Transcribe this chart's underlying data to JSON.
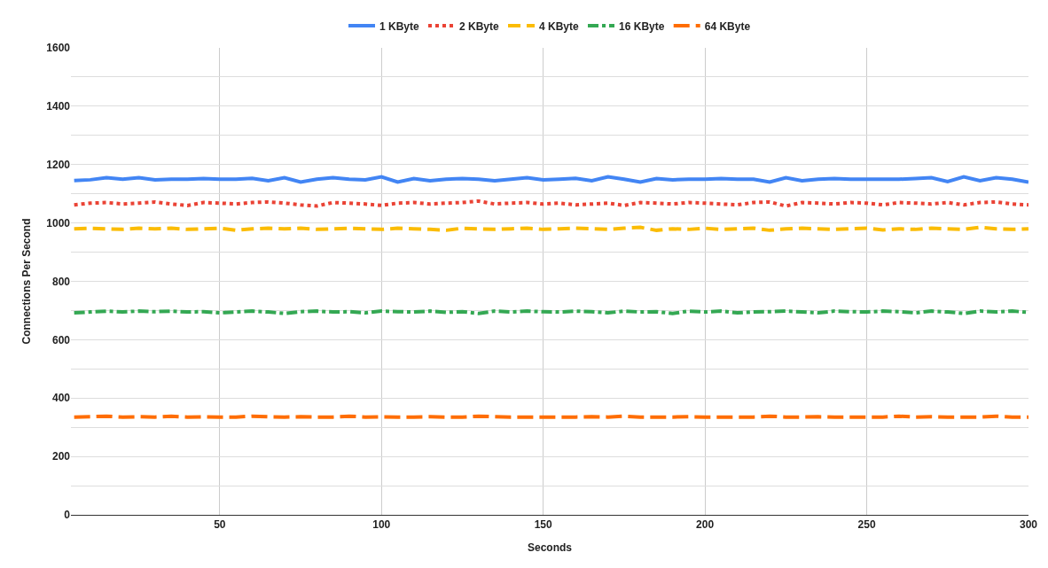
{
  "chart_data": {
    "type": "line",
    "xlabel": "Seconds",
    "ylabel": "Connections Per Second",
    "x": [
      5,
      10,
      15,
      20,
      25,
      30,
      35,
      40,
      45,
      50,
      55,
      60,
      65,
      70,
      75,
      80,
      85,
      90,
      95,
      100,
      105,
      110,
      115,
      120,
      125,
      130,
      135,
      140,
      145,
      150,
      155,
      160,
      165,
      170,
      175,
      180,
      185,
      190,
      195,
      200,
      205,
      210,
      215,
      220,
      225,
      230,
      235,
      240,
      245,
      250,
      255,
      260,
      265,
      270,
      275,
      280,
      285,
      290,
      295,
      300
    ],
    "series": [
      {
        "name": "1 KByte",
        "color": "#4285f4",
        "line_style": "solid",
        "values": [
          1145,
          1148,
          1155,
          1150,
          1155,
          1148,
          1150,
          1150,
          1152,
          1150,
          1150,
          1153,
          1145,
          1155,
          1140,
          1150,
          1155,
          1150,
          1148,
          1158,
          1140,
          1152,
          1145,
          1150,
          1152,
          1150,
          1145,
          1150,
          1155,
          1148,
          1150,
          1153,
          1145,
          1158,
          1150,
          1140,
          1152,
          1148,
          1150,
          1150,
          1152,
          1150,
          1150,
          1140,
          1155,
          1145,
          1150,
          1152,
          1150,
          1150,
          1150,
          1150,
          1152,
          1155,
          1142,
          1158,
          1145,
          1155,
          1150,
          1140
        ]
      },
      {
        "name": "2 KByte",
        "color": "#ea4335",
        "line_style": "dotted",
        "values": [
          1062,
          1068,
          1070,
          1065,
          1068,
          1072,
          1065,
          1060,
          1070,
          1068,
          1065,
          1070,
          1072,
          1068,
          1062,
          1058,
          1070,
          1068,
          1065,
          1060,
          1068,
          1070,
          1065,
          1068,
          1070,
          1075,
          1065,
          1068,
          1070,
          1065,
          1068,
          1062,
          1065,
          1068,
          1060,
          1070,
          1068,
          1065,
          1070,
          1068,
          1065,
          1062,
          1070,
          1072,
          1058,
          1070,
          1068,
          1065,
          1070,
          1068,
          1062,
          1070,
          1068,
          1065,
          1070,
          1062,
          1070,
          1072,
          1065,
          1062
        ]
      },
      {
        "name": "4 KByte",
        "color": "#fbbc04",
        "line_style": "dashed",
        "values": [
          980,
          982,
          980,
          978,
          982,
          980,
          982,
          978,
          980,
          982,
          975,
          980,
          982,
          980,
          982,
          978,
          980,
          982,
          980,
          978,
          982,
          980,
          978,
          975,
          982,
          980,
          978,
          980,
          982,
          978,
          980,
          982,
          980,
          978,
          982,
          985,
          975,
          980,
          978,
          982,
          978,
          980,
          982,
          975,
          980,
          982,
          980,
          978,
          980,
          982,
          976,
          980,
          978,
          982,
          980,
          978,
          985,
          980,
          978,
          980
        ]
      },
      {
        "name": "16 KByte",
        "color": "#34a853",
        "line_style": "dashdot",
        "values": [
          692,
          695,
          698,
          695,
          698,
          696,
          698,
          695,
          696,
          692,
          695,
          698,
          695,
          690,
          696,
          698,
          695,
          696,
          692,
          698,
          696,
          695,
          698,
          694,
          696,
          690,
          698,
          695,
          698,
          696,
          695,
          698,
          696,
          692,
          698,
          695,
          696,
          690,
          698,
          695,
          698,
          692,
          695,
          696,
          698,
          695,
          692,
          698,
          696,
          695,
          698,
          696,
          692,
          698,
          695,
          690,
          698,
          695,
          698,
          694
        ]
      },
      {
        "name": "64 KByte",
        "color": "#ff6d01",
        "line_style": "longdash",
        "values": [
          335,
          336,
          338,
          335,
          336,
          335,
          338,
          335,
          336,
          335,
          335,
          338,
          336,
          335,
          336,
          335,
          335,
          338,
          335,
          336,
          335,
          335,
          336,
          335,
          335,
          338,
          336,
          335,
          335,
          335,
          335,
          335,
          336,
          335,
          338,
          335,
          335,
          335,
          336,
          335,
          335,
          335,
          335,
          338,
          335,
          335,
          336,
          335,
          335,
          335,
          335,
          338,
          335,
          336,
          335,
          335,
          335,
          338,
          335,
          335
        ]
      }
    ],
    "xlim": [
      4,
      300
    ],
    "xticks": [
      50,
      100,
      150,
      200,
      250,
      300
    ],
    "ylim": [
      0,
      1600
    ],
    "yticks": [
      0,
      {
        "value": 100,
        "label": null
      },
      200,
      {
        "value": 300,
        "label": null
      },
      400,
      {
        "value": 500,
        "label": null
      },
      600,
      {
        "value": 700,
        "label": null
      },
      800,
      {
        "value": 900,
        "label": null
      },
      1000,
      {
        "value": 1100,
        "label": null
      },
      1200,
      {
        "value": 1300,
        "label": null
      },
      1400,
      {
        "value": 1500,
        "label": null
      },
      1600
    ],
    "grid": true,
    "legend": "top",
    "marker": "none"
  }
}
